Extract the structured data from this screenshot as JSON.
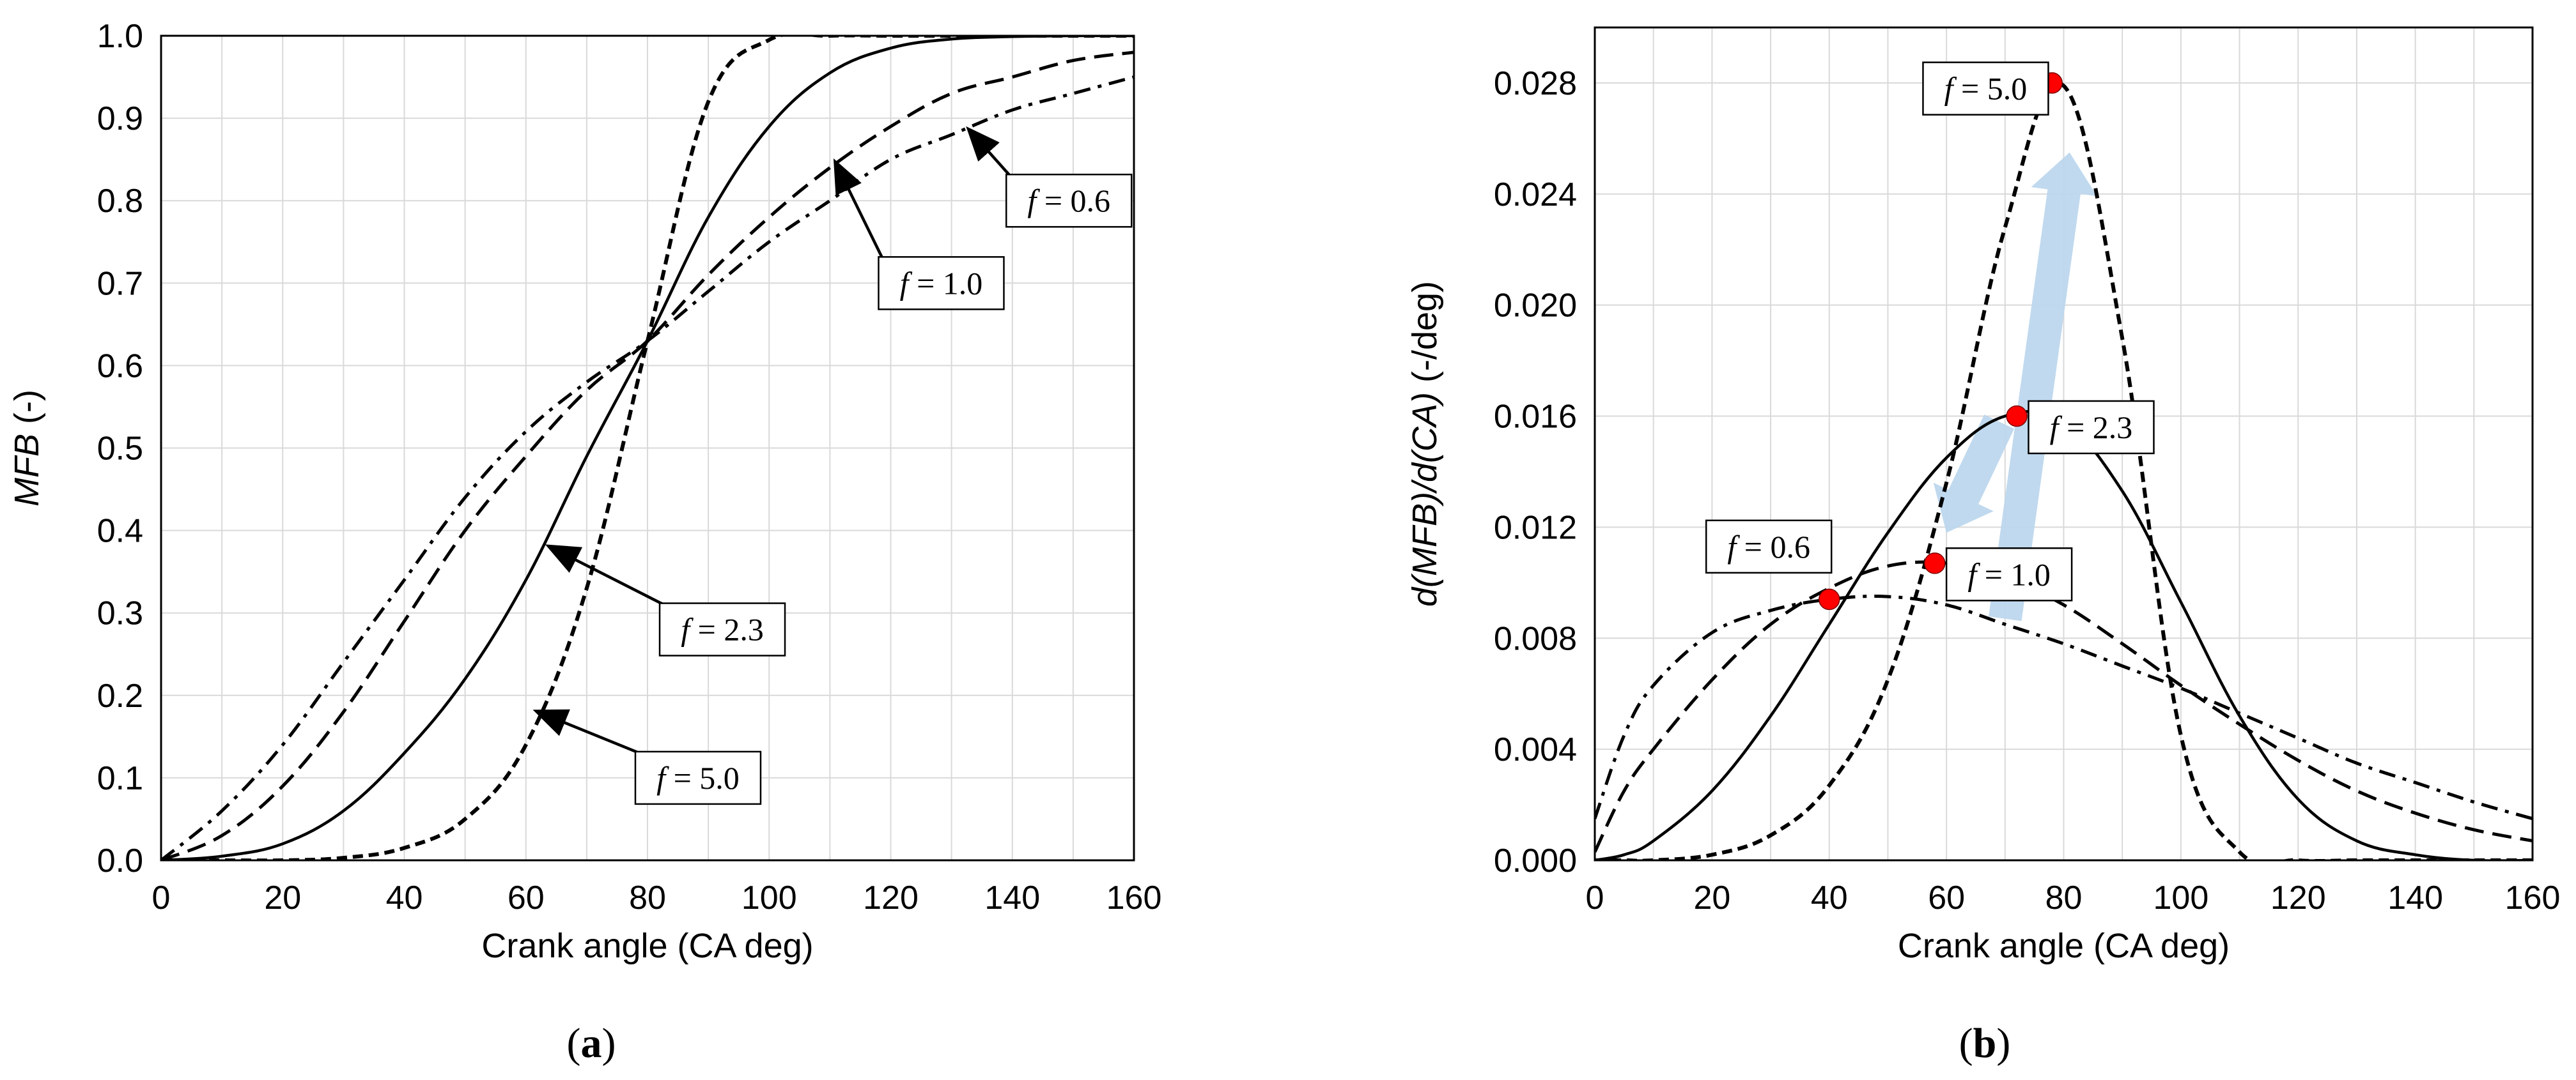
{
  "chart_data": [
    {
      "type": "line",
      "panel_label": "(a)",
      "title": "",
      "xlabel": "Crank angle (CA deg)",
      "ylabel_italic": "MFB",
      "ylabel_rest": "(-)",
      "xlim": [
        0,
        160
      ],
      "ylim": [
        0,
        1.0
      ],
      "x_ticks": [
        0,
        20,
        40,
        60,
        80,
        100,
        120,
        140,
        160
      ],
      "y_ticks": [
        0.0,
        0.1,
        0.2,
        0.3,
        0.4,
        0.5,
        0.6,
        0.7,
        0.8,
        0.9,
        1.0
      ],
      "y_tick_labels": [
        "0.0",
        "0.1",
        "0.2",
        "0.3",
        "0.4",
        "0.5",
        "0.6",
        "0.7",
        "0.8",
        "0.9",
        "1.0"
      ],
      "grid": true,
      "x": [
        0,
        10,
        20,
        30,
        40,
        50,
        60,
        70,
        80,
        90,
        100,
        110,
        120,
        130,
        140,
        150,
        160
      ],
      "series": [
        {
          "name": "f = 0.6",
          "dash": "dashdot",
          "values": [
            0.0,
            0.06,
            0.14,
            0.24,
            0.34,
            0.44,
            0.52,
            0.58,
            0.63,
            0.69,
            0.75,
            0.8,
            0.85,
            0.88,
            0.91,
            0.93,
            0.95
          ]
        },
        {
          "name": "f = 1.0",
          "dash": "dash",
          "values": [
            0.0,
            0.03,
            0.09,
            0.18,
            0.29,
            0.4,
            0.49,
            0.57,
            0.63,
            0.71,
            0.78,
            0.84,
            0.89,
            0.93,
            0.95,
            0.97,
            0.98
          ]
        },
        {
          "name": "f = 2.3",
          "dash": "solid",
          "values": [
            0.0,
            0.005,
            0.02,
            0.06,
            0.13,
            0.22,
            0.34,
            0.49,
            0.63,
            0.78,
            0.89,
            0.955,
            0.985,
            0.996,
            0.999,
            1.0,
            1.0
          ]
        },
        {
          "name": "f = 5.0",
          "dash": "dash-heavy",
          "values": [
            0.0,
            0.0,
            0.0,
            0.003,
            0.015,
            0.05,
            0.14,
            0.33,
            0.63,
            0.92,
            0.995,
            1.0,
            1.0,
            1.0,
            1.0,
            1.0,
            1.0
          ]
        }
      ],
      "callouts": [
        {
          "pre": "",
          "italic": "f",
          "post": " = 0.6",
          "box_data": [
            139,
            0.8
          ],
          "arrow_to": [
            133,
            0.885
          ]
        },
        {
          "pre": "",
          "italic": "f",
          "post": " = 1.0",
          "box_data": [
            118,
            0.7
          ],
          "arrow_to": [
            111,
            0.845
          ]
        },
        {
          "pre": "",
          "italic": "f",
          "post": " = 2.3",
          "box_data": [
            82,
            0.28
          ],
          "arrow_to": [
            64,
            0.38
          ]
        },
        {
          "pre": "",
          "italic": "f",
          "post": " = 5.0",
          "box_data": [
            78,
            0.1
          ],
          "arrow_to": [
            62,
            0.18
          ]
        }
      ]
    },
    {
      "type": "line",
      "panel_label": "(b)",
      "title": "",
      "xlabel": "Crank angle (CA deg)",
      "ylabel_italic": "d(MFB)/d(CA)",
      "ylabel_rest": "(-/deg)",
      "xlim": [
        0,
        160
      ],
      "ylim": [
        0,
        0.03
      ],
      "x_ticks": [
        0,
        20,
        40,
        60,
        80,
        100,
        120,
        140,
        160
      ],
      "y_ticks": [
        0.0,
        0.004,
        0.008,
        0.012,
        0.016,
        0.02,
        0.024,
        0.028
      ],
      "y_tick_labels": [
        "0.000",
        "0.004",
        "0.008",
        "0.012",
        "0.016",
        "0.020",
        "0.024",
        "0.028"
      ],
      "grid": true,
      "x": [
        0,
        5,
        10,
        20,
        30,
        40,
        50,
        60,
        70,
        80,
        90,
        100,
        110,
        120,
        130,
        140,
        150,
        160
      ],
      "series": [
        {
          "name": "f = 0.6",
          "dash": "dashdot",
          "values": [
            0.0015,
            0.0045,
            0.0063,
            0.0082,
            0.009,
            0.0094,
            0.0095,
            0.0092,
            0.0085,
            0.0078,
            0.007,
            0.0062,
            0.0053,
            0.0044,
            0.0035,
            0.0028,
            0.0021,
            0.0015
          ]
        },
        {
          "name": "f = 1.0",
          "dash": "dash",
          "values": [
            0.0003,
            0.0025,
            0.004,
            0.0065,
            0.0085,
            0.0098,
            0.0106,
            0.0107,
            0.0102,
            0.0092,
            0.0078,
            0.0063,
            0.0049,
            0.0036,
            0.0025,
            0.0017,
            0.0011,
            0.0007
          ]
        },
        {
          "name": "f = 2.3",
          "dash": "solid",
          "values": [
            0.0,
            0.0002,
            0.0007,
            0.0025,
            0.0052,
            0.0085,
            0.0118,
            0.0145,
            0.016,
            0.0158,
            0.0133,
            0.0093,
            0.0052,
            0.0022,
            0.0007,
            0.0002,
            0.0,
            0.0
          ]
        },
        {
          "name": "f = 5.0",
          "dash": "dash-heavy",
          "values": [
            0.0,
            0.0,
            0.0,
            0.0002,
            0.0009,
            0.0027,
            0.0065,
            0.0136,
            0.0228,
            0.0279,
            0.0188,
            0.0045,
            0.0003,
            0.0,
            0.0,
            0.0,
            0.0,
            0.0
          ]
        }
      ],
      "markers": [
        {
          "series": "f = 0.6",
          "x": 40,
          "y": 0.0094,
          "color": "#ff0000"
        },
        {
          "series": "f = 1.0",
          "x": 58,
          "y": 0.0107,
          "color": "#ff0000"
        },
        {
          "series": "f = 2.3",
          "x": 72,
          "y": 0.016,
          "color": "#ff0000"
        },
        {
          "series": "f = 5.0",
          "x": 78,
          "y": 0.028,
          "color": "#ff0000"
        }
      ],
      "callouts": [
        {
          "pre": "",
          "italic": "f",
          "post": " = 5.0",
          "box_data": [
            56,
            0.0278
          ]
        },
        {
          "pre": "",
          "italic": "f",
          "post": " = 2.3",
          "box_data": [
            74,
            0.0156
          ]
        },
        {
          "pre": "",
          "italic": "f",
          "post": " = 1.0",
          "box_data": [
            60,
            0.0103
          ]
        },
        {
          "pre": "",
          "italic": "f",
          "post": " = 0.6",
          "box_data": [
            19,
            0.0113
          ]
        }
      ],
      "trend_arrow": {
        "color": "#bdd7ee",
        "from": [
          70,
          0.0087
        ],
        "to": [
          81,
          0.0255
        ],
        "back_from": [
          69,
          0.0158
        ],
        "back_to": [
          60,
          0.0118
        ]
      }
    }
  ]
}
